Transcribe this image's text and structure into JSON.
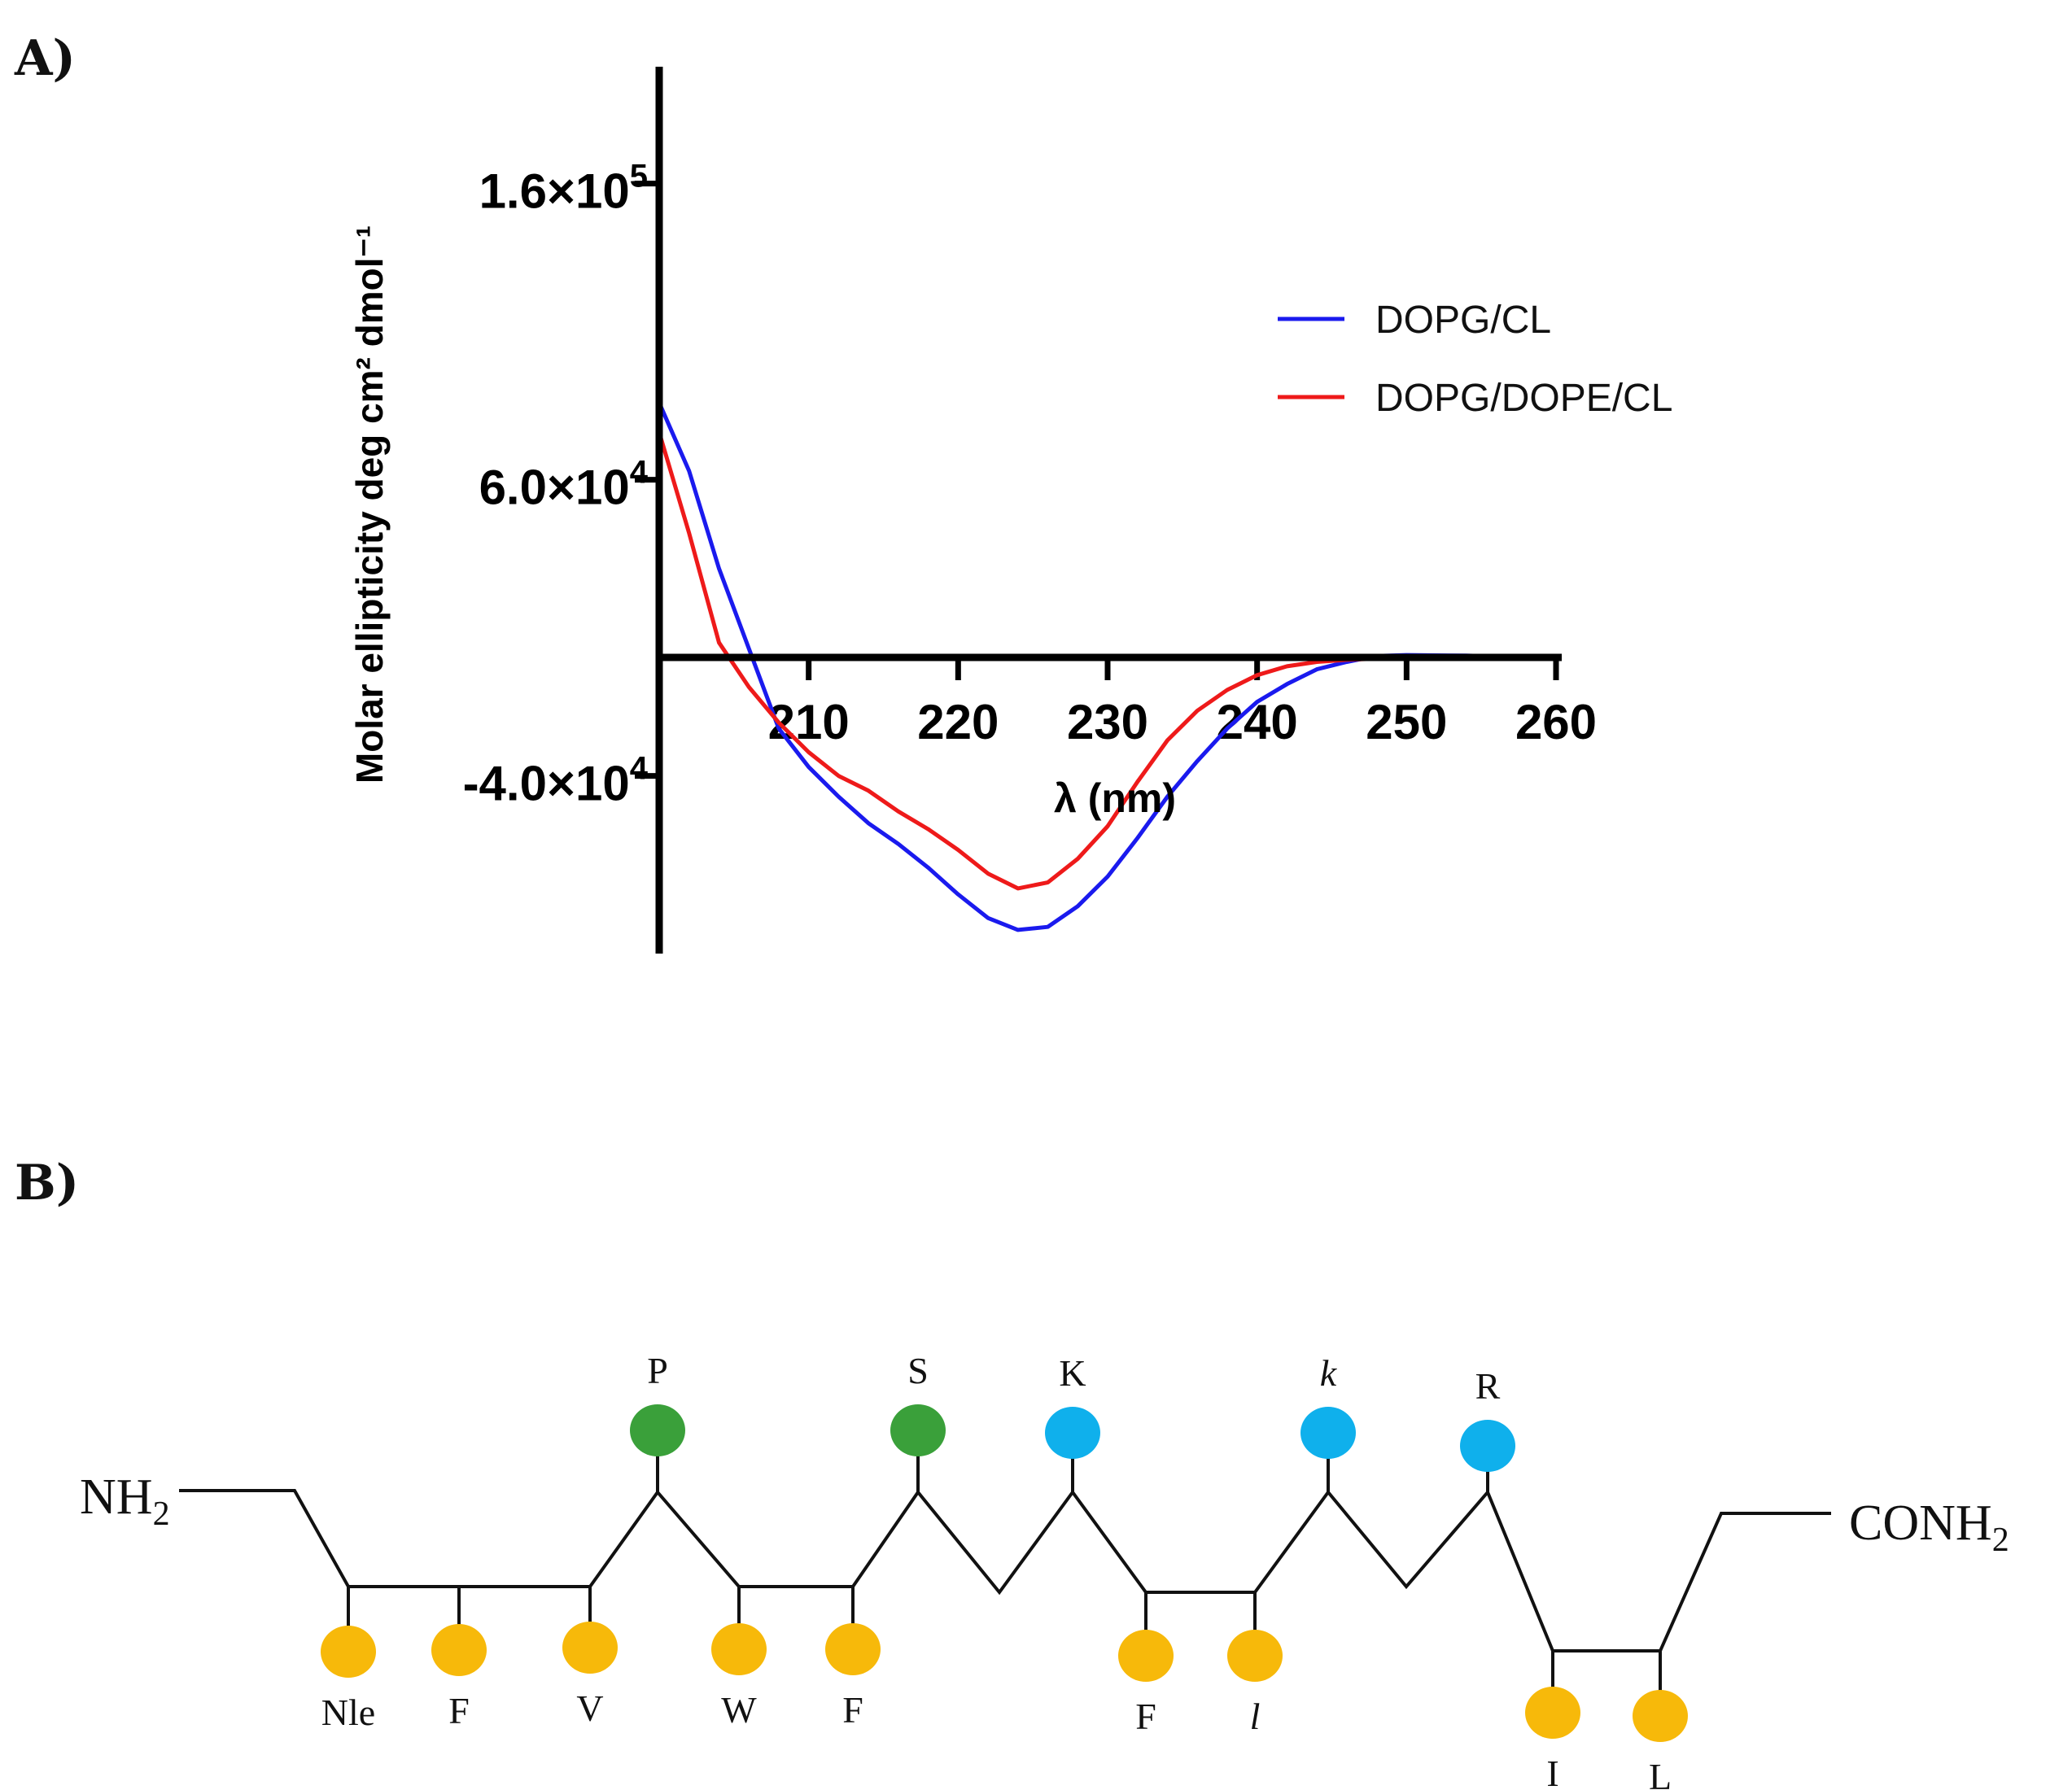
{
  "panel_a_label": "A)",
  "panel_b_label": "B)",
  "chart_data": {
    "type": "line",
    "title": "",
    "xlabel": "λ (nm)",
    "ylabel": "Molar ellipticity deg cm² dmol⁻¹",
    "xlim": [
      200,
      260
    ],
    "ylim": [
      -95000,
      200000
    ],
    "x_ticks": [
      210,
      220,
      230,
      240,
      250,
      260
    ],
    "y_ticks": [
      {
        "value": 160000,
        "mantissa": "1.6×10",
        "exponent": "5"
      },
      {
        "value": 60000,
        "mantissa": "6.0×10",
        "exponent": "4"
      },
      {
        "value": -40000,
        "mantissa": "-4.0×10",
        "exponent": "4"
      }
    ],
    "legend_position": "right",
    "series": [
      {
        "name": "DOPG/CL",
        "color": "#1a1aee",
        "x": [
          200,
          202,
          204,
          206,
          208,
          210,
          212,
          214,
          216,
          218,
          220,
          222,
          224,
          226,
          228,
          230,
          232,
          234,
          236,
          238,
          240,
          242,
          244,
          246,
          248,
          250,
          252,
          254,
          256,
          258,
          260
        ],
        "y": [
          86000,
          63000,
          30000,
          3000,
          -24000,
          -37000,
          -47000,
          -56000,
          -63000,
          -71000,
          -80000,
          -88000,
          -92000,
          -91000,
          -84000,
          -74000,
          -61000,
          -47000,
          -35000,
          -24000,
          -15000,
          -9000,
          -4000,
          -1500,
          500,
          800,
          700,
          600,
          300,
          0,
          0
        ]
      },
      {
        "name": "DOPG/DOPE/CL",
        "color": "#ee1a1a",
        "x": [
          200,
          202,
          204,
          206,
          208,
          210,
          212,
          214,
          216,
          218,
          220,
          222,
          224,
          226,
          228,
          230,
          232,
          234,
          236,
          238,
          240,
          242,
          244,
          246,
          248,
          250,
          252,
          254,
          256,
          258,
          260
        ],
        "y": [
          76000,
          42000,
          5000,
          -10000,
          -22000,
          -32000,
          -40000,
          -45000,
          -52000,
          -58000,
          -65000,
          -73000,
          -78000,
          -76000,
          -68000,
          -57000,
          -42000,
          -28000,
          -18000,
          -11000,
          -6000,
          -3000,
          -1500,
          -800,
          -400,
          -200,
          0,
          0,
          0,
          0,
          0
        ]
      }
    ]
  },
  "peptide": {
    "n_terminus": {
      "main": "NH",
      "sub": "2"
    },
    "c_terminus": {
      "main": "CONH",
      "sub": "2"
    },
    "residues": [
      {
        "label": "Nle",
        "class": "hydrophobic",
        "italic": false
      },
      {
        "label": "F",
        "class": "hydrophobic",
        "italic": false
      },
      {
        "label": "V",
        "class": "hydrophobic",
        "italic": false
      },
      {
        "label": "P",
        "class": "polar",
        "italic": false
      },
      {
        "label": "W",
        "class": "hydrophobic",
        "italic": false
      },
      {
        "label": "F",
        "class": "hydrophobic",
        "italic": false
      },
      {
        "label": "S",
        "class": "polar",
        "italic": false
      },
      {
        "label": "K",
        "class": "cationic",
        "italic": false
      },
      {
        "label": "F",
        "class": "hydrophobic",
        "italic": false
      },
      {
        "label": "l",
        "class": "hydrophobic",
        "italic": true
      },
      {
        "label": "k",
        "class": "cationic",
        "italic": true
      },
      {
        "label": "R",
        "class": "cationic",
        "italic": false
      },
      {
        "label": "I",
        "class": "hydrophobic",
        "italic": false
      },
      {
        "label": "L",
        "class": "hydrophobic",
        "italic": false
      }
    ],
    "colors": {
      "hydrophobic": "#f7b90a",
      "polar": "#3aa03a",
      "cationic": "#0fb0ec"
    }
  }
}
